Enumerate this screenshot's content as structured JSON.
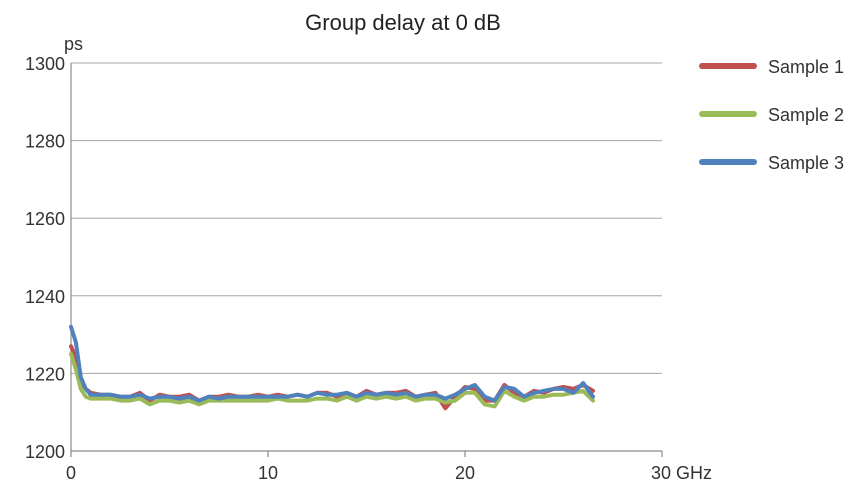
{
  "chart_data": {
    "type": "line",
    "title": "Group delay at 0 dB",
    "ylabel": "ps",
    "xlabel": "",
    "x_unit": "GHz",
    "xlim": [
      0,
      30
    ],
    "ylim": [
      1200,
      1300
    ],
    "x_ticks": [
      "0",
      "10",
      "20",
      "30 GHz"
    ],
    "x_tick_values": [
      0,
      10,
      20,
      30
    ],
    "y_ticks": [
      "1200",
      "1220",
      "1240",
      "1260",
      "1280",
      "1300"
    ],
    "y_tick_values": [
      1200,
      1220,
      1240,
      1260,
      1280,
      1300
    ],
    "grid": true,
    "legend_position": "right",
    "x": [
      0.0,
      0.25,
      0.5,
      0.75,
      1.0,
      1.5,
      2.0,
      2.5,
      3.0,
      3.5,
      4.0,
      4.5,
      5.0,
      5.5,
      6.0,
      6.5,
      7.0,
      7.5,
      8.0,
      8.5,
      9.0,
      9.5,
      10.0,
      10.5,
      11.0,
      11.5,
      12.0,
      12.5,
      13.0,
      13.5,
      14.0,
      14.5,
      15.0,
      15.5,
      16.0,
      16.5,
      17.0,
      17.5,
      18.0,
      18.5,
      19.0,
      19.5,
      20.0,
      20.5,
      21.0,
      21.5,
      22.0,
      22.5,
      23.0,
      23.5,
      24.0,
      24.5,
      25.0,
      25.5,
      26.0,
      26.5
    ],
    "series": [
      {
        "name": "Sample 1",
        "color": "#c0504d",
        "values": [
          1227,
          1224,
          1218,
          1216,
          1215,
          1214.5,
          1214.5,
          1214,
          1214,
          1215,
          1213,
          1214.5,
          1214,
          1214,
          1214.5,
          1213,
          1214,
          1214,
          1214.5,
          1214,
          1214,
          1214.5,
          1214,
          1214.5,
          1214,
          1214.5,
          1214,
          1215,
          1215,
          1214,
          1215,
          1214,
          1215.5,
          1214.5,
          1215,
          1215,
          1215.5,
          1214,
          1214.5,
          1215,
          1211,
          1214,
          1216.5,
          1216,
          1213,
          1213,
          1217,
          1215,
          1214,
          1215.5,
          1215,
          1216,
          1216.5,
          1216,
          1217,
          1215.5
        ]
      },
      {
        "name": "Sample 2",
        "color": "#9bbb59",
        "values": [
          1225,
          1221,
          1216,
          1214,
          1213.5,
          1213.5,
          1213.5,
          1213,
          1213,
          1213.5,
          1212,
          1213,
          1213,
          1212.5,
          1213,
          1212,
          1213,
          1213,
          1213,
          1213,
          1213,
          1213,
          1213,
          1213.5,
          1213,
          1213,
          1213,
          1213.5,
          1213.5,
          1213,
          1214,
          1213,
          1214,
          1213.5,
          1214,
          1213.5,
          1214,
          1213,
          1213.5,
          1213.5,
          1212.5,
          1213,
          1215,
          1215,
          1212,
          1211.5,
          1215.5,
          1214,
          1213,
          1214,
          1214,
          1214.5,
          1214.5,
          1215,
          1215.5,
          1213
        ]
      },
      {
        "name": "Sample 3",
        "color": "#4f81bd",
        "values": [
          1232,
          1228,
          1219,
          1216,
          1214.5,
          1214.5,
          1214.5,
          1214,
          1214,
          1214.5,
          1213.5,
          1214,
          1214,
          1213.5,
          1214,
          1213,
          1214,
          1213.5,
          1214,
          1214,
          1214,
          1214,
          1214,
          1214,
          1214,
          1214.5,
          1214,
          1215,
          1214.5,
          1214.5,
          1215,
          1214,
          1215,
          1214.5,
          1215,
          1214.5,
          1215,
          1214,
          1214.5,
          1214.5,
          1213.5,
          1214.5,
          1216,
          1217,
          1214,
          1213,
          1216.5,
          1216,
          1214,
          1215,
          1215.5,
          1216,
          1216,
          1215,
          1217.5,
          1214
        ]
      }
    ]
  }
}
